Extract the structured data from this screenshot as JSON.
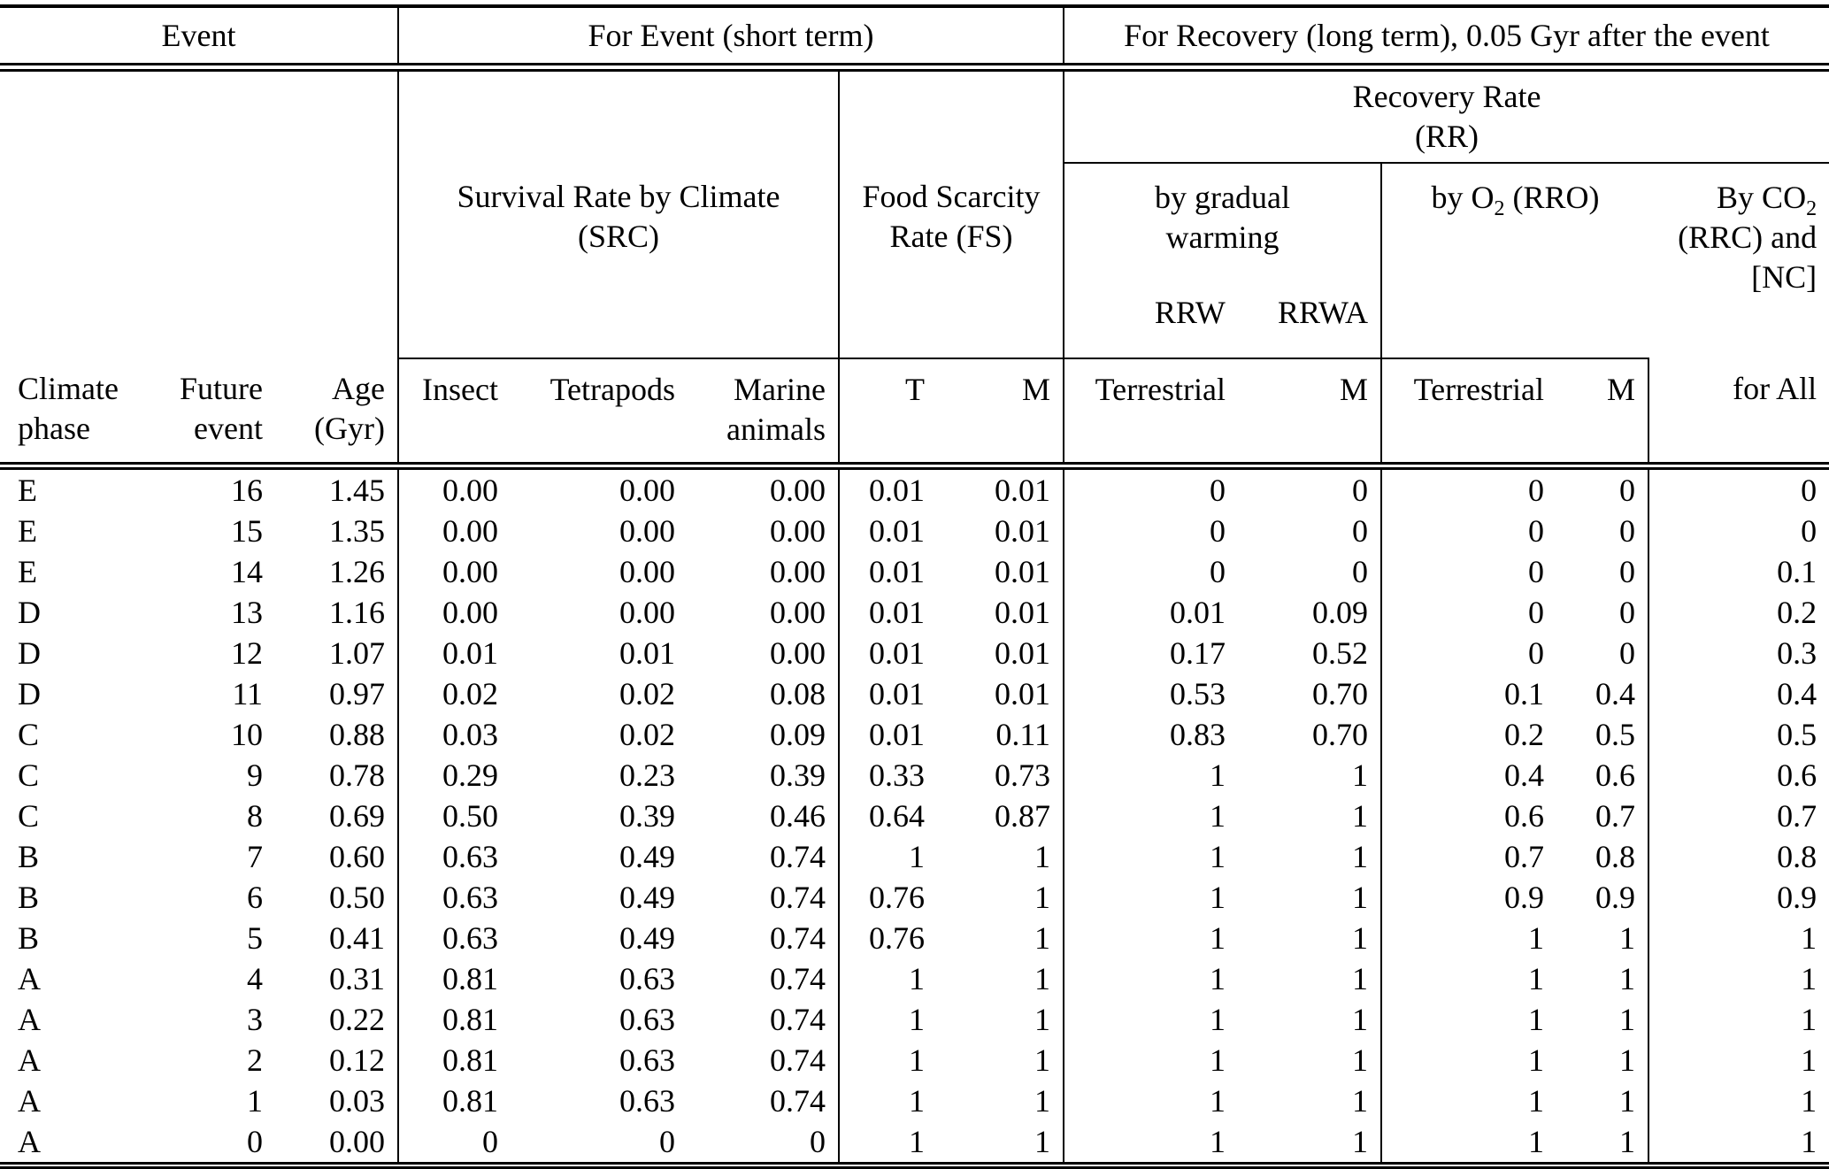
{
  "table": {
    "groups": {
      "event": "Event",
      "for_event": "For Event (short term)",
      "for_recovery": "For Recovery (long term), 0.05 Gyr after the event"
    },
    "recovery_rate": {
      "line1": "Recovery Rate",
      "line2": "(RR)"
    },
    "subgroups": {
      "src": {
        "line1": "Survival Rate by Climate",
        "line2": "(SRC)"
      },
      "fs": {
        "line1": "Food Scarcity",
        "line2": "Rate (FS)"
      },
      "warming": {
        "line1": "by gradual",
        "line2": "warming",
        "col1": "RRW",
        "col2": "RRWA"
      },
      "rro": {
        "pre": "by O",
        "sub": "2",
        "post": " (RRO)"
      },
      "co2": {
        "line1_pre": "By CO",
        "line1_sub": "2",
        "line2": "(RRC) and",
        "line3": "[NC]"
      }
    },
    "columns": {
      "climate": {
        "line1": "Climate",
        "line2": "phase"
      },
      "future": {
        "line1": "Future",
        "line2": "event"
      },
      "age": {
        "line1": "Age",
        "line2": "(Gyr)"
      },
      "insect": "Insect",
      "tetrapods": "Tetrapods",
      "marine": {
        "line1": "Marine",
        "line2": "animals"
      },
      "t": "T",
      "m_fs": "M",
      "terrestrial_w": "Terrestrial",
      "m_w": "M",
      "terrestrial_o": "Terrestrial",
      "m_o": "M",
      "for_all": "for All"
    },
    "rows": [
      [
        "E",
        "16",
        "1.45",
        "0.00",
        "0.00",
        "0.00",
        "0.01",
        "0.01",
        "0",
        "0",
        "0",
        "0",
        "0"
      ],
      [
        "E",
        "15",
        "1.35",
        "0.00",
        "0.00",
        "0.00",
        "0.01",
        "0.01",
        "0",
        "0",
        "0",
        "0",
        "0"
      ],
      [
        "E",
        "14",
        "1.26",
        "0.00",
        "0.00",
        "0.00",
        "0.01",
        "0.01",
        "0",
        "0",
        "0",
        "0",
        "0.1"
      ],
      [
        "D",
        "13",
        "1.16",
        "0.00",
        "0.00",
        "0.00",
        "0.01",
        "0.01",
        "0.01",
        "0.09",
        "0",
        "0",
        "0.2"
      ],
      [
        "D",
        "12",
        "1.07",
        "0.01",
        "0.01",
        "0.00",
        "0.01",
        "0.01",
        "0.17",
        "0.52",
        "0",
        "0",
        "0.3"
      ],
      [
        "D",
        "11",
        "0.97",
        "0.02",
        "0.02",
        "0.08",
        "0.01",
        "0.01",
        "0.53",
        "0.70",
        "0.1",
        "0.4",
        "0.4"
      ],
      [
        "C",
        "10",
        "0.88",
        "0.03",
        "0.02",
        "0.09",
        "0.01",
        "0.11",
        "0.83",
        "0.70",
        "0.2",
        "0.5",
        "0.5"
      ],
      [
        "C",
        "9",
        "0.78",
        "0.29",
        "0.23",
        "0.39",
        "0.33",
        "0.73",
        "1",
        "1",
        "0.4",
        "0.6",
        "0.6"
      ],
      [
        "C",
        "8",
        "0.69",
        "0.50",
        "0.39",
        "0.46",
        "0.64",
        "0.87",
        "1",
        "1",
        "0.6",
        "0.7",
        "0.7"
      ],
      [
        "B",
        "7",
        "0.60",
        "0.63",
        "0.49",
        "0.74",
        "1",
        "1",
        "1",
        "1",
        "0.7",
        "0.8",
        "0.8"
      ],
      [
        "B",
        "6",
        "0.50",
        "0.63",
        "0.49",
        "0.74",
        "0.76",
        "1",
        "1",
        "1",
        "0.9",
        "0.9",
        "0.9"
      ],
      [
        "B",
        "5",
        "0.41",
        "0.63",
        "0.49",
        "0.74",
        "0.76",
        "1",
        "1",
        "1",
        "1",
        "1",
        "1"
      ],
      [
        "A",
        "4",
        "0.31",
        "0.81",
        "0.63",
        "0.74",
        "1",
        "1",
        "1",
        "1",
        "1",
        "1",
        "1"
      ],
      [
        "A",
        "3",
        "0.22",
        "0.81",
        "0.63",
        "0.74",
        "1",
        "1",
        "1",
        "1",
        "1",
        "1",
        "1"
      ],
      [
        "A",
        "2",
        "0.12",
        "0.81",
        "0.63",
        "0.74",
        "1",
        "1",
        "1",
        "1",
        "1",
        "1",
        "1"
      ],
      [
        "A",
        "1",
        "0.03",
        "0.81",
        "0.63",
        "0.74",
        "1",
        "1",
        "1",
        "1",
        "1",
        "1",
        "1"
      ],
      [
        "A",
        "0",
        "0.00",
        "0",
        "0",
        "0",
        "1",
        "1",
        "1",
        "1",
        "1",
        "1",
        "1"
      ]
    ]
  }
}
